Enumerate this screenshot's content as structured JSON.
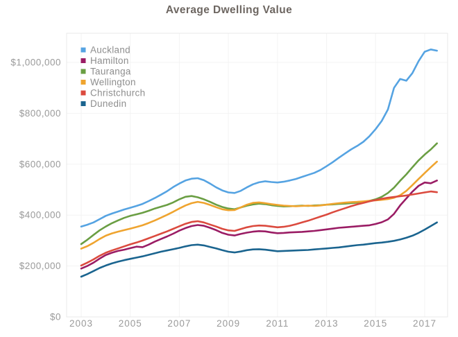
{
  "title": "Average Dwelling Value",
  "chart_data": {
    "type": "line",
    "title": "Average Dwelling Value",
    "xlabel": "",
    "ylabel": "",
    "x_units": "year",
    "value_units": "NZD",
    "x_start": 2003.0,
    "x_step": 0.25,
    "x_end": 2017.5,
    "xlim": [
      2002.4,
      2017.93
    ],
    "ylim": [
      0,
      1114000
    ],
    "grid": true,
    "legend_position": "top-left-inside",
    "x_ticks": [
      2003,
      2005,
      2007,
      2009,
      2011,
      2013,
      2015,
      2017
    ],
    "x_tick_labels": [
      "2003",
      "2005",
      "2007",
      "2009",
      "2011",
      "2013",
      "2015",
      "2017"
    ],
    "y_ticks": [
      0,
      200000,
      400000,
      600000,
      800000,
      1000000
    ],
    "y_tick_labels": [
      "$0",
      "$200,000",
      "$400,000",
      "$600,000",
      "$800,000",
      "$1,000,000"
    ],
    "series": [
      {
        "name": "Auckland",
        "color": "#55a3e2",
        "values": [
          355000,
          362000,
          371000,
          384000,
          397000,
          406000,
          414000,
          422000,
          429000,
          436000,
          444000,
          455000,
          467000,
          480000,
          494000,
          510000,
          524000,
          536000,
          543000,
          545000,
          537000,
          524000,
          509000,
          497000,
          489000,
          487000,
          495000,
          509000,
          521000,
          529000,
          533000,
          530000,
          528000,
          531000,
          536000,
          542000,
          550000,
          558000,
          566000,
          577000,
          592000,
          608000,
          625000,
          642000,
          658000,
          672000,
          688000,
          710000,
          738000,
          770000,
          815000,
          900000,
          935000,
          928000,
          958000,
          1005000,
          1042000,
          1051000,
          1046000
        ]
      },
      {
        "name": "Hamilton",
        "color": "#9a1c64",
        "values": [
          190000,
          200000,
          213000,
          229000,
          243000,
          252000,
          259000,
          264000,
          270000,
          276000,
          274000,
          284000,
          296000,
          306000,
          316000,
          327000,
          339000,
          349000,
          357000,
          361000,
          358000,
          350000,
          341000,
          330000,
          323000,
          320000,
          326000,
          331000,
          335000,
          337000,
          336000,
          332000,
          329000,
          330000,
          332000,
          333000,
          334000,
          336000,
          338000,
          341000,
          344000,
          347000,
          350000,
          352000,
          354000,
          356000,
          358000,
          360000,
          365000,
          372000,
          383000,
          405000,
          438000,
          465000,
          492000,
          515000,
          528000,
          525000,
          536000
        ]
      },
      {
        "name": "Tauranga",
        "color": "#6a9e43",
        "values": [
          286000,
          303000,
          322000,
          340000,
          355000,
          368000,
          379000,
          389000,
          397000,
          403000,
          409000,
          417000,
          426000,
          433000,
          440000,
          450000,
          462000,
          472000,
          475000,
          470000,
          462000,
          452000,
          441000,
          432000,
          426000,
          423000,
          430000,
          437000,
          442000,
          445000,
          443000,
          439000,
          436000,
          434000,
          435000,
          436000,
          437000,
          436000,
          438000,
          439000,
          441000,
          442000,
          444000,
          445000,
          447000,
          449000,
          452000,
          456000,
          462000,
          472000,
          487000,
          508000,
          535000,
          560000,
          588000,
          615000,
          638000,
          658000,
          682000
        ]
      },
      {
        "name": "Wellington",
        "color": "#efa42f",
        "values": [
          268000,
          278000,
          291000,
          306000,
          319000,
          328000,
          335000,
          341000,
          347000,
          353000,
          360000,
          369000,
          379000,
          390000,
          401000,
          413000,
          426000,
          438000,
          447000,
          452000,
          448000,
          440000,
          431000,
          423000,
          419000,
          420000,
          430000,
          441000,
          448000,
          450000,
          447000,
          443000,
          440000,
          437000,
          436000,
          435000,
          436000,
          437000,
          436000,
          438000,
          441000,
          444000,
          447000,
          449000,
          451000,
          452000,
          454000,
          456000,
          458000,
          460000,
          463000,
          468000,
          478000,
          495000,
          518000,
          542000,
          565000,
          588000,
          610000
        ]
      },
      {
        "name": "Christchurch",
        "color": "#db4a3e",
        "values": [
          202000,
          213000,
          226000,
          240000,
          252000,
          261000,
          269000,
          277000,
          285000,
          292000,
          300000,
          309000,
          318000,
          327000,
          336000,
          346000,
          356000,
          366000,
          373000,
          376000,
          371000,
          363000,
          355000,
          346000,
          340000,
          338000,
          345000,
          352000,
          357000,
          359000,
          358000,
          355000,
          352000,
          354000,
          358000,
          364000,
          371000,
          378000,
          386000,
          394000,
          402000,
          411000,
          419000,
          427000,
          435000,
          442000,
          448000,
          454000,
          459000,
          464000,
          468000,
          471000,
          474000,
          477000,
          481000,
          485000,
          489000,
          493000,
          490000
        ]
      },
      {
        "name": "Dunedin",
        "color": "#1a648f",
        "values": [
          158000,
          168000,
          180000,
          192000,
          202000,
          210000,
          217000,
          223000,
          228000,
          233000,
          238000,
          244000,
          250000,
          256000,
          261000,
          266000,
          271000,
          277000,
          282000,
          284000,
          281000,
          275000,
          269000,
          262000,
          256000,
          253000,
          257000,
          262000,
          265000,
          266000,
          264000,
          261000,
          258000,
          259000,
          260000,
          261000,
          262000,
          263000,
          265000,
          267000,
          269000,
          271000,
          273000,
          276000,
          279000,
          282000,
          284000,
          287000,
          290000,
          292000,
          295000,
          299000,
          304000,
          311000,
          319000,
          330000,
          343000,
          357000,
          371000
        ]
      }
    ],
    "style": {
      "title_color": "#6d6661",
      "axis_label_color": "#9a9a9a",
      "legend_text_color": "#8e8e8e",
      "grid_color": "#f3f3f3",
      "plot_border_color": "#e9e9e9",
      "background_color": "#ffffff"
    }
  }
}
